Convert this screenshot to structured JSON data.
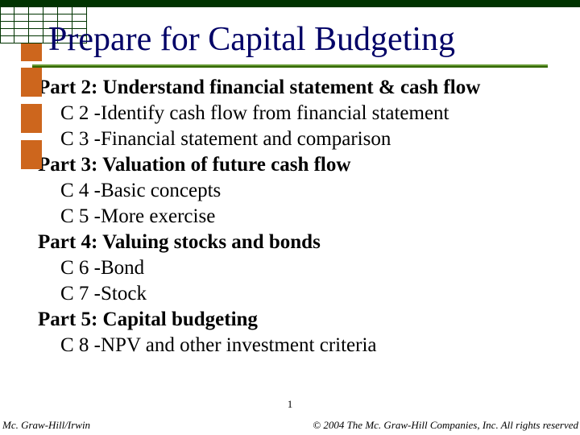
{
  "title": "Prepare for Capital Budgeting",
  "parts": [
    {
      "heading": "Part 2: Understand financial statement & cash flow",
      "items": [
        "C 2 -Identify cash flow from financial statement",
        "C 3 -Financial statement and comparison"
      ]
    },
    {
      "heading": "Part 3: Valuation of future cash flow",
      "items": [
        "C 4 -Basic concepts",
        "C 5 -More exercise"
      ]
    },
    {
      "heading": "Part 4: Valuing stocks and bonds",
      "items": [
        "C 6 -Bond",
        "C 7 -Stock"
      ]
    },
    {
      "heading": "Part 5: Capital budgeting",
      "items": [
        "C 8 -NPV and other investment criteria"
      ]
    }
  ],
  "page_number": "1",
  "footer_left": "Mc. Graw-Hill/Irwin",
  "footer_right": "© 2004 The Mc. Graw-Hill Companies, Inc. All rights reserved",
  "colors": {
    "title_color": "#000066",
    "rule_top": "#669933",
    "rule_bottom": "#336600",
    "grid_border": "#003300",
    "top_band": "#003300",
    "strip": "#cd661d",
    "background": "#ffffff",
    "text": "#000000"
  }
}
